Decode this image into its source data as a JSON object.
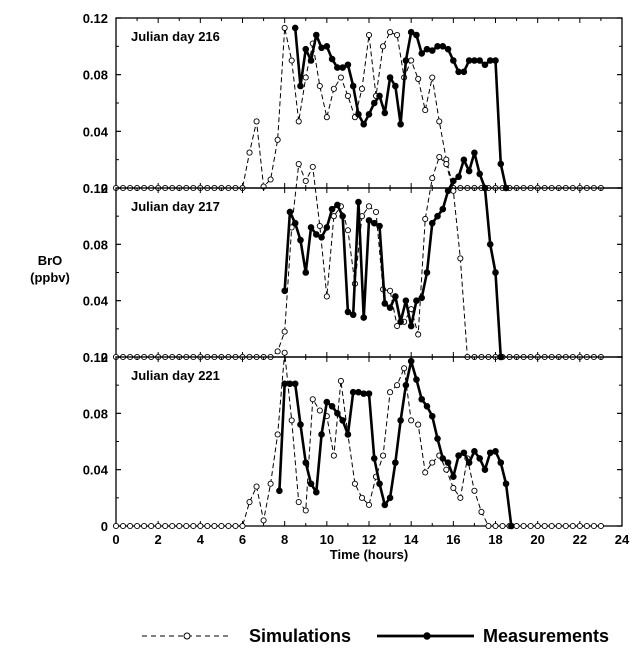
{
  "chart_data": {
    "type": "line",
    "shared_x": {
      "label": "Time (hours)",
      "range": [
        0,
        24
      ],
      "ticks": [
        "0",
        "2",
        "4",
        "6",
        "8",
        "10",
        "12",
        "14",
        "16",
        "18",
        "20",
        "22",
        "24"
      ]
    },
    "shared_y": {
      "label_lines": [
        "BrO",
        "(ppbv)"
      ],
      "range": [
        0,
        0.12
      ],
      "ticks_top_panel": [
        "0",
        "0.04",
        "0.08",
        "0.12"
      ],
      "ticks_other_panels": [
        "0",
        "0.04",
        "0.08",
        "0.12"
      ]
    },
    "legend": {
      "position": "bottom",
      "items": [
        {
          "name": "Simulations",
          "style": "dashed",
          "marker": "open-circle"
        },
        {
          "name": "Measurements",
          "style": "solid",
          "marker": "filled-circle"
        }
      ]
    },
    "panels": [
      {
        "title": "Julian day 216",
        "series": [
          {
            "name": "Simulations",
            "x": [
              0,
              0.333,
              0.667,
              1,
              1.333,
              1.667,
              2,
              2.333,
              2.667,
              3,
              3.333,
              3.667,
              4,
              4.333,
              4.667,
              5,
              5.333,
              5.667,
              6,
              6.333,
              6.667,
              7,
              7.333,
              7.667,
              8,
              8.333,
              8.667,
              9,
              9.333,
              9.667,
              10,
              10.333,
              10.667,
              11,
              11.333,
              11.667,
              12,
              12.333,
              12.667,
              13,
              13.333,
              13.667,
              14,
              14.333,
              14.667,
              15,
              15.333,
              15.667,
              16,
              16.333,
              16.667,
              17,
              17.333,
              17.667,
              18,
              18.333,
              18.667,
              19,
              19.333,
              19.667,
              20,
              20.333,
              20.667,
              21,
              21.333,
              21.667,
              22,
              22.333,
              22.667,
              23
            ],
            "y": [
              0,
              0,
              0,
              0,
              0,
              0,
              0,
              0,
              0,
              0,
              0,
              0,
              0,
              0,
              0,
              0,
              0,
              0,
              0,
              0.025,
              0.047,
              0.001,
              0.006,
              0.034,
              0.113,
              0.09,
              0.047,
              0.078,
              0.102,
              0.072,
              0.05,
              0.07,
              0.078,
              0.065,
              0.05,
              0.07,
              0.108,
              0.065,
              0.1,
              0.11,
              0.108,
              0.078,
              0.09,
              0.077,
              0.055,
              0.078,
              0.047,
              0.02,
              0,
              0,
              0,
              0,
              0,
              0,
              0,
              0,
              0,
              0,
              0,
              0,
              0,
              0,
              0,
              0,
              0,
              0,
              0,
              0,
              0,
              0
            ]
          },
          {
            "name": "Measurements",
            "x": [
              8.5,
              8.75,
              9,
              9.25,
              9.5,
              9.75,
              10,
              10.25,
              10.5,
              10.75,
              11,
              11.25,
              11.5,
              11.75,
              12,
              12.25,
              12.5,
              12.75,
              13,
              13.25,
              13.5,
              13.75,
              14,
              14.25,
              14.5,
              14.75,
              15,
              15.25,
              15.5,
              15.75,
              16,
              16.25,
              16.5,
              16.75,
              17,
              17.25,
              17.5,
              17.75,
              18,
              18.25,
              18.5
            ],
            "y": [
              0.113,
              0.072,
              0.098,
              0.09,
              0.108,
              0.099,
              0.1,
              0.091,
              0.085,
              0.085,
              0.087,
              0.072,
              0.052,
              0.045,
              0.052,
              0.06,
              0.065,
              0.053,
              0.078,
              0.072,
              0.045,
              0.09,
              0.11,
              0.108,
              0.095,
              0.098,
              0.097,
              0.1,
              0.1,
              0.098,
              0.09,
              0.082,
              0.082,
              0.09,
              0.09,
              0.09,
              0.087,
              0.09,
              0.09,
              0.017,
              0
            ]
          }
        ]
      },
      {
        "title": "Julian day 217",
        "series": [
          {
            "name": "Simulations",
            "x": [
              0,
              0.333,
              0.667,
              1,
              1.333,
              1.667,
              2,
              2.333,
              2.667,
              3,
              3.333,
              3.667,
              4,
              4.333,
              4.667,
              5,
              5.333,
              5.667,
              6,
              6.333,
              6.667,
              7,
              7.333,
              7.667,
              8,
              8.333,
              8.667,
              9,
              9.333,
              9.667,
              10,
              10.333,
              10.667,
              11,
              11.333,
              11.667,
              12,
              12.333,
              12.667,
              13,
              13.333,
              13.667,
              14,
              14.333,
              14.667,
              15,
              15.333,
              15.667,
              16,
              16.333,
              16.667,
              17,
              17.333,
              17.667,
              18,
              18.333,
              18.667,
              19,
              19.333,
              19.667,
              20,
              20.333,
              20.667,
              21,
              21.333,
              21.667,
              22,
              22.333,
              22.667,
              23
            ],
            "y": [
              0,
              0,
              0,
              0,
              0,
              0,
              0,
              0,
              0,
              0,
              0,
              0,
              0,
              0,
              0,
              0,
              0,
              0,
              0,
              0,
              0,
              0,
              0,
              0.004,
              0.018,
              0.092,
              0.137,
              0.125,
              0.135,
              0.093,
              0.043,
              0.1,
              0.107,
              0.09,
              0.052,
              0.1,
              0.107,
              0.103,
              0.048,
              0.047,
              0.022,
              0.025,
              0.034,
              0.016,
              0.098,
              0.127,
              0.142,
              0.137,
              0.118,
              0.07,
              0,
              0,
              0,
              0,
              0,
              0,
              0,
              0,
              0,
              0,
              0,
              0,
              0,
              0,
              0,
              0,
              0,
              0,
              0,
              0
            ]
          },
          {
            "name": "Measurements",
            "x": [
              8,
              8.25,
              8.5,
              8.75,
              9,
              9.25,
              9.5,
              9.75,
              10,
              10.25,
              10.5,
              10.75,
              11,
              11.25,
              11.5,
              11.75,
              12,
              12.25,
              12.5,
              12.75,
              13,
              13.25,
              13.5,
              13.75,
              14,
              14.25,
              14.5,
              14.75,
              15,
              15.25,
              15.5,
              15.75,
              16,
              16.25,
              16.5,
              16.75,
              17,
              17.25,
              17.5,
              17.75,
              18,
              18.25
            ],
            "y": [
              0.047,
              0.103,
              0.095,
              0.083,
              0.06,
              0.092,
              0.087,
              0.085,
              0.092,
              0.105,
              0.108,
              0.1,
              0.032,
              0.03,
              0.11,
              0.028,
              0.097,
              0.095,
              0.093,
              0.038,
              0.035,
              0.043,
              0.025,
              0.04,
              0.022,
              0.04,
              0.042,
              0.06,
              0.095,
              0.1,
              0.105,
              0.118,
              0.125,
              0.128,
              0.14,
              0.132,
              0.145,
              0.13,
              0.12,
              0.08,
              0.06,
              0
            ]
          }
        ]
      },
      {
        "title": "Julian day 221",
        "series": [
          {
            "name": "Simulations",
            "x": [
              0,
              0.333,
              0.667,
              1,
              1.333,
              1.667,
              2,
              2.333,
              2.667,
              3,
              3.333,
              3.667,
              4,
              4.333,
              4.667,
              5,
              5.333,
              5.667,
              6,
              6.333,
              6.667,
              7,
              7.333,
              7.667,
              8,
              8.333,
              8.667,
              9,
              9.333,
              9.667,
              10,
              10.333,
              10.667,
              11,
              11.333,
              11.667,
              12,
              12.333,
              12.667,
              13,
              13.333,
              13.667,
              14,
              14.333,
              14.667,
              15,
              15.333,
              15.667,
              16,
              16.333,
              16.667,
              17,
              17.333,
              17.667,
              18,
              18.333,
              18.667,
              19,
              19.333,
              19.667,
              20,
              20.333,
              20.667,
              21,
              21.333,
              21.667,
              22,
              22.333,
              22.667,
              23
            ],
            "y": [
              0,
              0,
              0,
              0,
              0,
              0,
              0,
              0,
              0,
              0,
              0,
              0,
              0,
              0,
              0,
              0,
              0,
              0,
              0,
              0.017,
              0.028,
              0.004,
              0.03,
              0.065,
              0.123,
              0.075,
              0.017,
              0.011,
              0.09,
              0.082,
              0.078,
              0.05,
              0.103,
              0.065,
              0.03,
              0.02,
              0.015,
              0.035,
              0.05,
              0.095,
              0.1,
              0.112,
              0.075,
              0.072,
              0.038,
              0.045,
              0.05,
              0.04,
              0.027,
              0.02,
              0.048,
              0.025,
              0.01,
              0,
              0,
              0,
              0,
              0,
              0,
              0,
              0,
              0,
              0,
              0,
              0,
              0,
              0,
              0,
              0,
              0
            ]
          },
          {
            "name": "Measurements",
            "x": [
              7.75,
              8,
              8.25,
              8.5,
              8.75,
              9,
              9.25,
              9.5,
              9.75,
              10,
              10.25,
              10.5,
              10.75,
              11,
              11.25,
              11.5,
              11.75,
              12,
              12.25,
              12.5,
              12.75,
              13,
              13.25,
              13.5,
              13.75,
              14,
              14.25,
              14.5,
              14.75,
              15,
              15.25,
              15.5,
              15.75,
              16,
              16.25,
              16.5,
              16.75,
              17,
              17.25,
              17.5,
              17.75,
              18,
              18.25,
              18.5,
              18.75
            ],
            "y": [
              0.025,
              0.101,
              0.101,
              0.101,
              0.072,
              0.045,
              0.03,
              0.024,
              0.065,
              0.088,
              0.085,
              0.08,
              0.075,
              0.065,
              0.095,
              0.095,
              0.094,
              0.094,
              0.048,
              0.03,
              0.015,
              0.02,
              0.045,
              0.075,
              0.1,
              0.117,
              0.104,
              0.09,
              0.085,
              0.078,
              0.062,
              0.048,
              0.045,
              0.035,
              0.05,
              0.052,
              0.045,
              0.053,
              0.048,
              0.04,
              0.052,
              0.053,
              0.045,
              0.03,
              0
            ]
          }
        ]
      }
    ]
  }
}
